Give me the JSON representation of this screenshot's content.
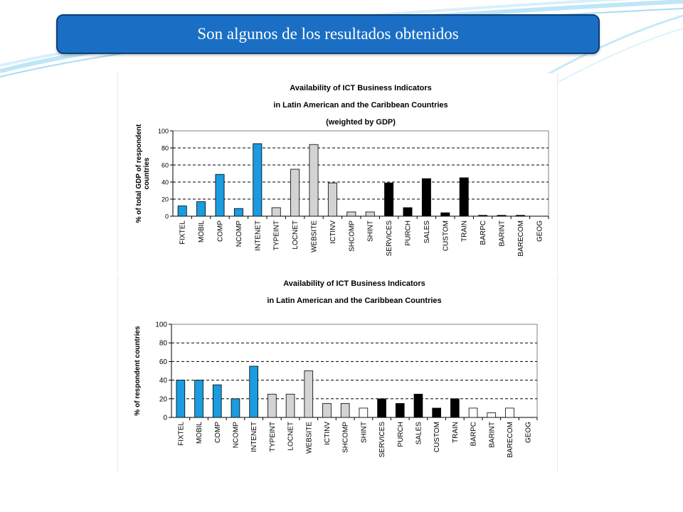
{
  "slide": {
    "title": "Son algunos de los resultados obtenidos",
    "accent_color": "#1a6fc4"
  },
  "chart_data": [
    {
      "type": "bar",
      "title": "Availability of ICT Business Indicators",
      "subtitle": "in Latin American and the Caribbean Countries",
      "subtitle2": "(weighted by GDP)",
      "ylabel_line1": "% of total GDP of respondent",
      "ylabel_line2": "countries",
      "xlabel": "",
      "ylim": [
        0,
        100
      ],
      "yticks": [
        0,
        20,
        40,
        60,
        80,
        100
      ],
      "grid": "dashed horizontal",
      "categories": [
        "FIXTEL",
        "MOBIL",
        "COMP",
        "NCOMP",
        "INTENET",
        "TYPEINT",
        "LOCNET",
        "WEBSITE",
        "ICTINV",
        "SHCOMP",
        "SHINT",
        "SERVICES",
        "PURCH",
        "SALES",
        "CUSTOM",
        "TRAIN",
        "BARPC",
        "BARINT",
        "BARECOM",
        "GEOG"
      ],
      "values": [
        12,
        17,
        49,
        9,
        85,
        10,
        55,
        84,
        39,
        5,
        5,
        39,
        10,
        44,
        4,
        45,
        1,
        1,
        1,
        0
      ],
      "colors": [
        "#1b9be0",
        "#1b9be0",
        "#1b9be0",
        "#1b9be0",
        "#1b9be0",
        "#d3d3d3",
        "#d3d3d3",
        "#d3d3d3",
        "#d3d3d3",
        "#d3d3d3",
        "#d3d3d3",
        "#000000",
        "#000000",
        "#000000",
        "#000000",
        "#000000",
        "#000000",
        "#000000",
        "#000000",
        "#000000"
      ]
    },
    {
      "type": "bar",
      "title": "Availability of ICT Business Indicators",
      "subtitle": "in Latin American and the Caribbean Countries",
      "subtitle2": "",
      "ylabel_line1": "% of respondent countries",
      "ylabel_line2": "",
      "xlabel": "",
      "ylim": [
        0,
        100
      ],
      "yticks": [
        0,
        20,
        40,
        60,
        80,
        100
      ],
      "grid": "dashed horizontal",
      "categories": [
        "FIXTEL",
        "MOBIL",
        "COMP",
        "NCOMP",
        "INTENET",
        "TYPEINT",
        "LOCNET",
        "WEBSITE",
        "ICTINV",
        "SHCOMP",
        "SHINT",
        "SERVICES",
        "PURCH",
        "SALES",
        "CUSTOM",
        "TRAIN",
        "BARPC",
        "BARINT",
        "BARECOM",
        "GEOG"
      ],
      "values": [
        40,
        40,
        35,
        20,
        55,
        25,
        25,
        50,
        15,
        15,
        10,
        20,
        15,
        25,
        10,
        20,
        10,
        5,
        10,
        0
      ],
      "colors": [
        "#1b9be0",
        "#1b9be0",
        "#1b9be0",
        "#1b9be0",
        "#1b9be0",
        "#d3d3d3",
        "#d3d3d3",
        "#d3d3d3",
        "#d3d3d3",
        "#d3d3d3",
        "#ffffff",
        "#000000",
        "#000000",
        "#000000",
        "#000000",
        "#000000",
        "#ffffff",
        "#ffffff",
        "#ffffff",
        "#ffffff"
      ]
    }
  ]
}
